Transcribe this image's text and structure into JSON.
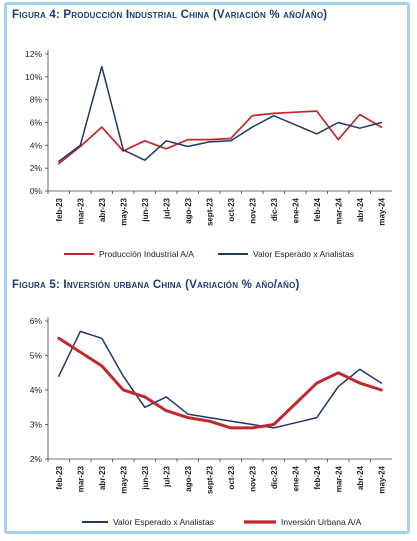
{
  "chart_data": [
    {
      "type": "line",
      "title": "Figura 4: Producción Industrial China",
      "subtitle": "(Variación % año/año)",
      "categories": [
        "feb-23",
        "mar-23",
        "abr-23",
        "may-23",
        "jun-23",
        "jul-23",
        "ago-23",
        "sept-23",
        "oct-23",
        "nov-23",
        "dic-23",
        "ene-24",
        "feb-24",
        "mar-24",
        "abr-24",
        "may-24"
      ],
      "x_tick_labels": [
        "feb-23",
        "mar-23",
        "abr-23",
        "may-23",
        "jun-23",
        "jul-23",
        "ago-23",
        "sept-23",
        "oct-23",
        "nov-23",
        "dic-23",
        "ene-24",
        "feb-24",
        "mar-24",
        "abr-24",
        "may-24"
      ],
      "ylim": [
        0,
        12
      ],
      "y_ticks": [
        "0%",
        "2%",
        "4%",
        "6%",
        "8%",
        "10%",
        "12%"
      ],
      "y_tick_values": [
        0,
        2,
        4,
        6,
        8,
        10,
        12
      ],
      "series": [
        {
          "name": "Producción Industrial A/A",
          "color": "#c1272d",
          "values": [
            2.4,
            3.9,
            5.6,
            3.5,
            4.4,
            3.7,
            4.5,
            4.5,
            4.6,
            6.6,
            6.8,
            6.9,
            7.0,
            4.5,
            6.7,
            5.6
          ]
        },
        {
          "name": "Valor Esperado x Analistas",
          "color": "#1f3864",
          "values": [
            2.6,
            4.0,
            10.9,
            3.6,
            2.7,
            4.4,
            3.9,
            4.3,
            4.4,
            5.6,
            6.6,
            5.8,
            5.0,
            6.0,
            5.5,
            6.0
          ]
        }
      ],
      "legend_position": "bottom",
      "grid": false
    },
    {
      "type": "line",
      "title": "Figura 5: Inversión urbana China",
      "subtitle": "(Variación % año/año)",
      "categories": [
        "feb-23",
        "mar-23",
        "abr-23",
        "may-23",
        "jun-23",
        "jul-23",
        "ago-23",
        "sept-23",
        "oct-23",
        "nov-23",
        "dic-23",
        "ene-24",
        "feb-24",
        "mar-24",
        "abr-24",
        "may-24"
      ],
      "x_tick_labels": [
        "feb-23",
        "mar-23",
        "abr-23",
        "may-23",
        "jun-23",
        "jul-23",
        "ago-23",
        "sept-23",
        "oct-23",
        "nov-23",
        "dic-23",
        "ene-24",
        "feb-24",
        "mar-24",
        "abr-24",
        "may-24"
      ],
      "ylim": [
        2,
        6
      ],
      "y_ticks": [
        "2%",
        "3%",
        "4%",
        "5%",
        "6%"
      ],
      "y_tick_values": [
        2,
        3,
        4,
        5,
        6
      ],
      "series": [
        {
          "name": "Valor Esperado x Analistas",
          "color": "#1f3864",
          "values": [
            4.4,
            5.7,
            5.5,
            4.4,
            3.5,
            3.8,
            3.3,
            3.2,
            3.1,
            3.0,
            2.9,
            3.05,
            3.2,
            4.1,
            4.6,
            4.2
          ]
        },
        {
          "name": "Inversión Urbana A/A",
          "color": "#c1272d",
          "values": [
            5.5,
            5.1,
            4.7,
            4.0,
            3.8,
            3.4,
            3.2,
            3.1,
            2.9,
            2.9,
            3.0,
            3.6,
            4.2,
            4.5,
            4.2,
            4.0
          ]
        }
      ],
      "legend_position": "bottom",
      "grid": false
    }
  ]
}
